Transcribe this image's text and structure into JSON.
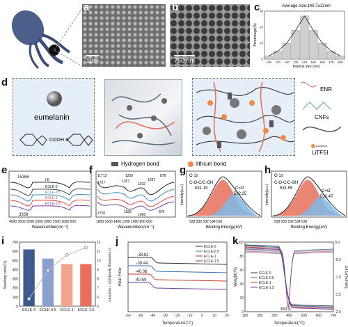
{
  "panels": {
    "a": {
      "label": "a",
      "scale": "1μm"
    },
    "b": {
      "label": "b",
      "scale": "750 nm"
    },
    "c": {
      "label": "c",
      "title": "Average size:140.7±13nm",
      "xlabel": "Particle size (nm)",
      "ylabel": "Percentage(%)"
    },
    "d": {
      "label": "d",
      "eumelanin": "eumelanin",
      "legend_h": "Hydrogen bond",
      "legend_li": "lithium bond",
      "enr": "ENR",
      "cnfs": "CNFs",
      "litfsi": "LiTFSI"
    },
    "e": {
      "label": "e",
      "series": [
        "LE",
        "ECLE-0",
        "ECLE-0.5",
        "ECLE-1",
        "ECLE-1.5"
      ],
      "peaks": [
        "15366",
        "3338"
      ],
      "xlabel": "Wavenumber(cm⁻¹)"
    },
    "f": {
      "label": "f",
      "peaks": [
        "11713",
        "1727",
        "1720",
        "1250",
        "1267",
        "1102",
        "1037",
        "878",
        "1183",
        "1096",
        "870"
      ],
      "xlabel": "Wavenumber(cm⁻¹)"
    },
    "g": {
      "label": "g",
      "tag": "O 1s",
      "peak1": "C-O-C/C-OH",
      "peak1v": "531.19",
      "peak2": "C=O",
      "peak2v": "532.25",
      "xlabel": "Binding Energy(eV)",
      "ylabel": "Intensity(a.u.)"
    },
    "h": {
      "label": "h",
      "tag": "O 1s",
      "peak1": "C-O-C/C-OH",
      "peak1v": "531.55",
      "peak2": "C=O",
      "peak2v": "532.47",
      "xlabel": "Binding Energy(eV)",
      "ylabel": "Intensity(a.u.)"
    },
    "i": {
      "label": "i",
      "ylabel_l": "Swelling ratio(%)",
      "ylabel_r": "Crosslinking density(10⁻⁴ mol/cm³)"
    },
    "j": {
      "label": "j",
      "tg": [
        "-38.82",
        "-39.44",
        "-40.06",
        "-40.59"
      ],
      "xlabel": "Temperature(°C)",
      "ylabel": "Heat Flow"
    },
    "k": {
      "label": "k",
      "annot": "383.6",
      "xlabel": "Temperature(°C)",
      "ylabel_l": "Weight(%)",
      "ylabel_r": "DTG(%/min)"
    }
  },
  "chart_data": [
    {
      "type": "bar",
      "panel": "c",
      "title": "Average size:140.7±13nm",
      "categories": [
        "100",
        "110",
        "120",
        "130",
        "140",
        "150",
        "160",
        "170",
        "180"
      ],
      "values": [
        2,
        5,
        10,
        18,
        27,
        18,
        10,
        5,
        2
      ],
      "xlabel": "Particle size (nm)",
      "ylabel": "Percentage(%)",
      "ylim": [
        0,
        30
      ],
      "yticks": [
        "0",
        "10",
        "20",
        "30"
      ],
      "colors": {
        "bar": "#cfcfcf",
        "curve": "#222222"
      }
    },
    {
      "type": "bar",
      "panel": "i",
      "categories": [
        "ECLE-0",
        "ECLE-0.5",
        "ECLE-1",
        "ECLE-1.5"
      ],
      "values": [
        620,
        520,
        460,
        460
      ],
      "ylim": [
        0,
        700
      ],
      "yticks": [
        "0",
        "100",
        "200",
        "300",
        "400",
        "500",
        "600",
        "700"
      ],
      "yticks_right": [
        "5",
        "6",
        "7",
        "8",
        "9",
        "10",
        "11",
        "12"
      ],
      "ylabel": "Swelling ratio(%)",
      "ylabel_right": "Crosslinking density(10⁻⁴ mol/cm³)",
      "series_right": {
        "values": [
          5.8,
          8.9,
          10.6,
          11.4
        ],
        "ylim": [
          5,
          12
        ]
      },
      "colors": {
        "ECLE-0": "#3c5a8c",
        "ECLE-0.5": "#8aa1cf",
        "ECLE-1": "#f2a58c",
        "ECLE-1.5": "#e8705a",
        "line": "#b8b8b8"
      }
    },
    {
      "type": "line",
      "panel": "j",
      "xlim": [
        -60,
        20
      ],
      "xticks": [
        "-60",
        "-50",
        "-40",
        "-30",
        "-20",
        "-10",
        "0",
        "10",
        "20"
      ],
      "series": [
        {
          "name": "ECLE-0",
          "tg": -38.82
        },
        {
          "name": "ECLE-0.5",
          "tg": -39.44
        },
        {
          "name": "ECLE-1",
          "tg": -40.06
        },
        {
          "name": "ECLE-1.5",
          "tg": -40.59
        }
      ],
      "xlabel": "Temperature(°C)",
      "ylabel": "Heat Flow",
      "legend": "top-right"
    },
    {
      "type": "line",
      "panel": "k",
      "xlim": [
        100,
        700
      ],
      "xticks": [
        "100",
        "200",
        "300",
        "400",
        "500",
        "600",
        "700"
      ],
      "yticks_left": [
        "0",
        "20",
        "40",
        "60",
        "80",
        "100"
      ],
      "yticks_right": [
        "-2.0",
        "-1.5",
        "-1.0",
        "-0.5",
        "0.0"
      ],
      "series": [
        {
          "name": "ECLE-0"
        },
        {
          "name": "ECLE-0.5"
        },
        {
          "name": "ECLE-1"
        },
        {
          "name": "ECLE-1.5"
        }
      ],
      "annotation": "383.6",
      "xlabel": "Temperature(°C)",
      "ylabel": "Weight(%)",
      "ylabel_right": "DTG(%/min)",
      "legend": "center-left"
    }
  ]
}
